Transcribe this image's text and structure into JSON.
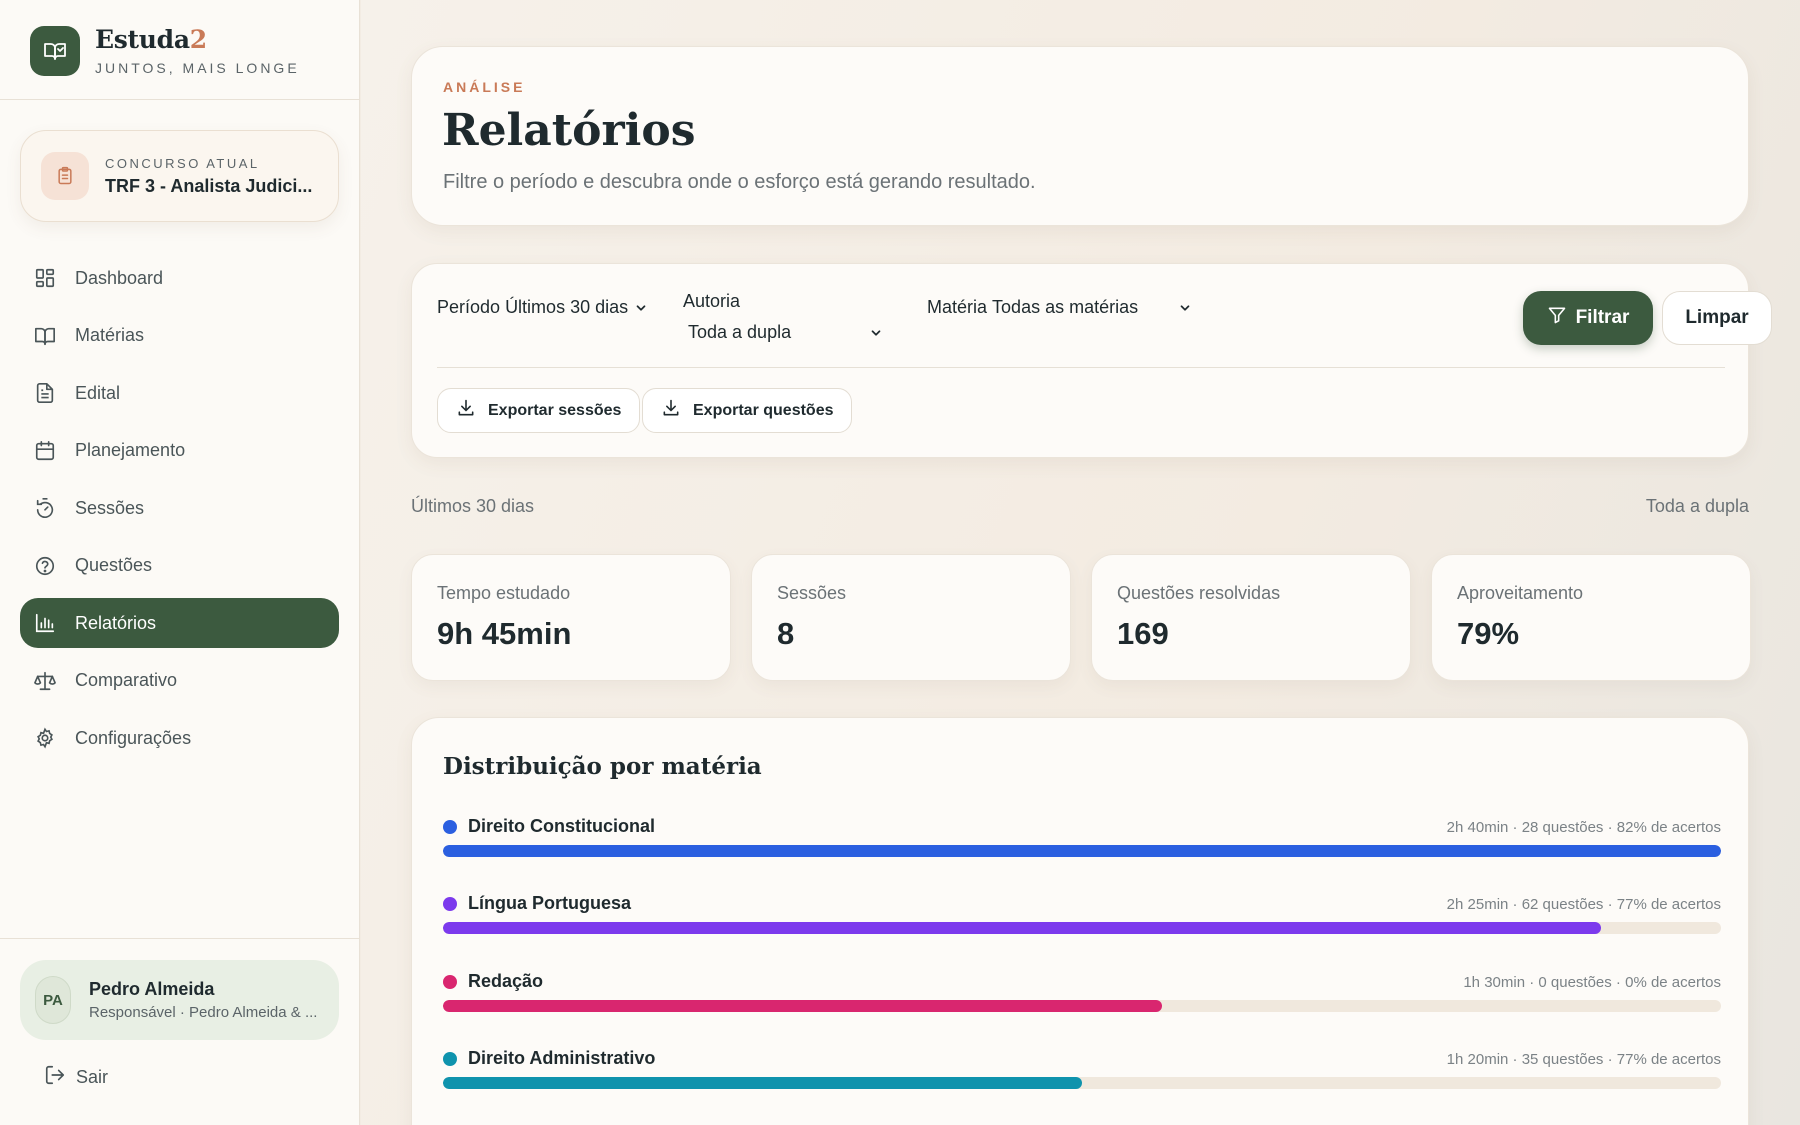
{
  "brand": {
    "name_main": "Estuda",
    "name_accent": "2",
    "tagline": "JUNTOS, MAIS LONGE"
  },
  "contest": {
    "label": "CONCURSO ATUAL",
    "value": "TRF 3 - Analista Judici..."
  },
  "nav": [
    {
      "label": "Dashboard",
      "icon": "dashboard-icon",
      "active": false
    },
    {
      "label": "Matérias",
      "icon": "book-icon",
      "active": false
    },
    {
      "label": "Edital",
      "icon": "document-icon",
      "active": false
    },
    {
      "label": "Planejamento",
      "icon": "calendar-icon",
      "active": false
    },
    {
      "label": "Sessões",
      "icon": "timer-icon",
      "active": false
    },
    {
      "label": "Questões",
      "icon": "help-circle-icon",
      "active": false
    },
    {
      "label": "Relatórios",
      "icon": "bar-chart-icon",
      "active": true
    },
    {
      "label": "Comparativo",
      "icon": "scale-icon",
      "active": false
    },
    {
      "label": "Configurações",
      "icon": "gear-icon",
      "active": false
    }
  ],
  "user": {
    "initials": "PA",
    "name": "Pedro Almeida",
    "subtitle": "Responsável · Pedro Almeida & ..."
  },
  "logout_label": "Sair",
  "header": {
    "eyebrow": "ANÁLISE",
    "title": "Relatórios",
    "subtitle": "Filtre o período e descubra onde o esforço está gerando resultado."
  },
  "filters": {
    "periodo_label": "Período",
    "periodo_value": "Últimos 30 dias",
    "autoria_label": "Autoria",
    "autoria_value": "Toda a dupla",
    "materia_label": "Matéria",
    "materia_value": "Todas as matérias",
    "filter_button": "Filtrar",
    "clear_button": "Limpar",
    "export_sessions": "Exportar sessões",
    "export_questions": "Exportar questões"
  },
  "summary": {
    "period": "Últimos 30 dias",
    "author": "Toda a dupla"
  },
  "stats": [
    {
      "label": "Tempo estudado",
      "value": "9h 45min"
    },
    {
      "label": "Sessões",
      "value": "8"
    },
    {
      "label": "Questões resolvidas",
      "value": "169"
    },
    {
      "label": "Aproveitamento",
      "value": "79%"
    }
  ],
  "distribution": {
    "title": "Distribuição por matéria",
    "subjects": [
      {
        "name": "Direito Constitucional",
        "meta": "2h 40min · 28 questões · 82% de acertos",
        "color": "#2b5fe0",
        "fraction": 1.0
      },
      {
        "name": "Língua Portuguesa",
        "meta": "2h 25min · 62 questões · 77% de acertos",
        "color": "#7c3aed",
        "fraction": 0.906
      },
      {
        "name": "Redação",
        "meta": "1h 30min · 0 questões · 0% de acertos",
        "color": "#d9266f",
        "fraction": 0.5625
      },
      {
        "name": "Direito Administrativo",
        "meta": "1h 20min · 35 questões · 77% de acertos",
        "color": "#0f93ad",
        "fraction": 0.5
      }
    ]
  }
}
